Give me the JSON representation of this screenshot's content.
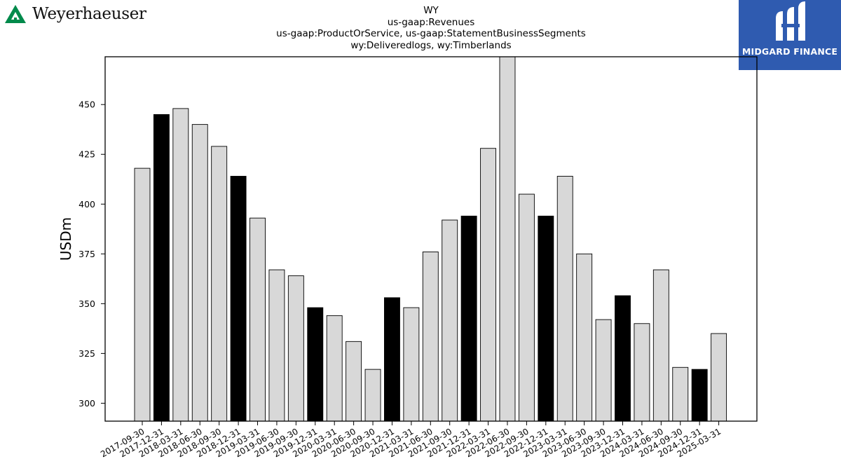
{
  "header": {
    "left_logo_text": "Weyerhaeuser",
    "left_logo_icon": "weyerhaeuser-tree-icon",
    "right_logo_text": "MIDGARD FINANCE",
    "right_logo_icon": "midgard-mark-icon",
    "right_logo_bg": "#2f5bb0",
    "left_logo_color": "#008a4b"
  },
  "chart_data": {
    "type": "bar",
    "title_lines": [
      "WY",
      "us-gaap:Revenues",
      "us-gaap:ProductOrService, us-gaap:StatementBusinessSegments",
      "wy:Deliveredlogs, wy:Timberlands"
    ],
    "ylabel": "USDm",
    "xlabel": "",
    "ylim": [
      291,
      474
    ],
    "yticks": [
      300,
      325,
      350,
      375,
      400,
      425,
      450
    ],
    "grid": false,
    "bar_color": "#d8d8d8",
    "highlight_color": "#000000",
    "categories": [
      "2017-09-30",
      "2017-12-31",
      "2018-03-31",
      "2018-06-30",
      "2018-09-30",
      "2018-12-31",
      "2019-03-31",
      "2019-06-30",
      "2019-09-30",
      "2019-12-31",
      "2020-03-31",
      "2020-06-30",
      "2020-09-30",
      "2020-12-31",
      "2021-03-31",
      "2021-06-30",
      "2021-09-30",
      "2021-12-31",
      "2022-03-31",
      "2022-06-30",
      "2022-09-30",
      "2022-12-31",
      "2023-03-31",
      "2023-06-30",
      "2023-09-30",
      "2023-12-31",
      "2024-03-31",
      "2024-06-30",
      "2024-09-30",
      "2024-12-31",
      "2025-03-31"
    ],
    "values": [
      418,
      445,
      448,
      440,
      429,
      414,
      393,
      367,
      364,
      348,
      344,
      331,
      317,
      353,
      348,
      376,
      392,
      394,
      428,
      474,
      405,
      394,
      414,
      375,
      342,
      354,
      340,
      367,
      318,
      317,
      335
    ],
    "highlight": [
      false,
      true,
      false,
      false,
      false,
      true,
      false,
      false,
      false,
      true,
      false,
      false,
      false,
      true,
      false,
      false,
      false,
      true,
      false,
      false,
      false,
      true,
      false,
      false,
      false,
      true,
      false,
      false,
      false,
      true,
      false
    ]
  }
}
